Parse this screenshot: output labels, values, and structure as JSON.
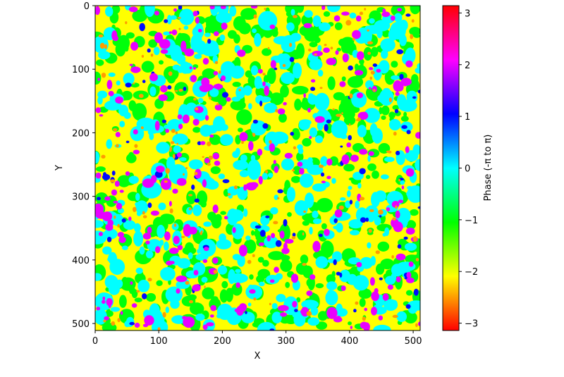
{
  "chart_data": {
    "type": "heatmap",
    "title": "",
    "xlabel": "X",
    "ylabel": "Y",
    "xlim": [
      0,
      511
    ],
    "ylim": [
      511,
      0
    ],
    "x_ticks": [
      0,
      100,
      200,
      300,
      400,
      500
    ],
    "y_ticks": [
      0,
      100,
      200,
      300,
      400,
      500
    ],
    "colormap": "hsv",
    "colorbar": {
      "label": "Phase (-π to π)",
      "range": [
        -3.14159,
        3.14159
      ],
      "ticks": [
        3,
        2,
        1,
        0,
        -1,
        -2,
        -3
      ],
      "tick_labels": [
        "3",
        "2",
        "1",
        "0",
        "−1",
        "−2",
        "−3"
      ]
    },
    "field": {
      "description": "random smooth phase field, dominant around -2 (yellow), patches near 0 (cyan), +2 (magenta)",
      "dominant_phase": -2.0,
      "secondary_phases": [
        -1.0,
        0.0,
        2.0
      ]
    }
  }
}
